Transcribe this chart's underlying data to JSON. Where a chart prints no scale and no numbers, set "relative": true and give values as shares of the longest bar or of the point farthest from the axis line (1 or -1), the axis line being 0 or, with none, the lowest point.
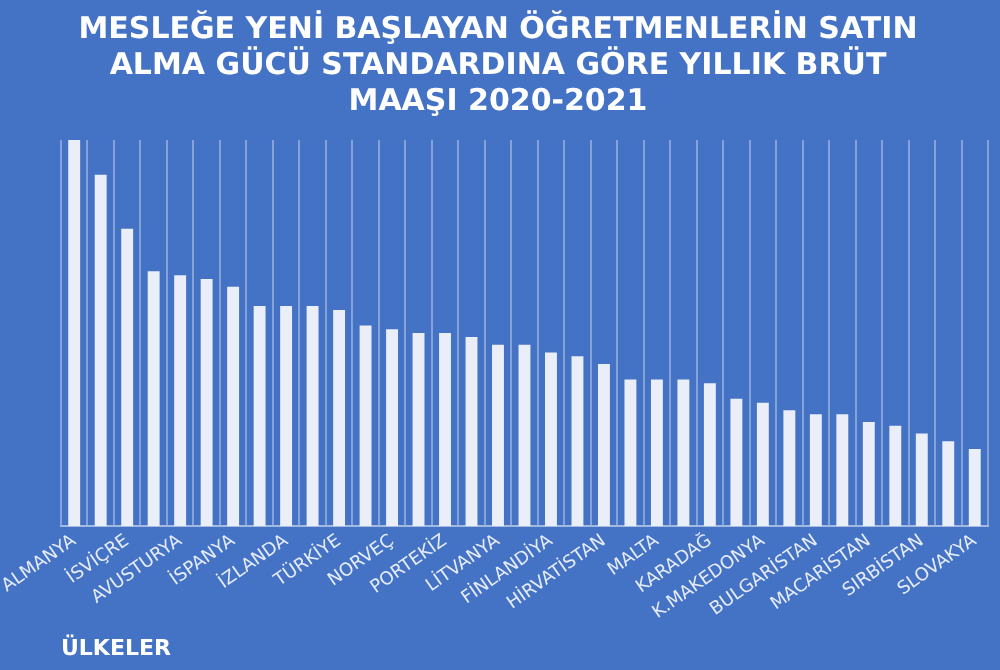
{
  "chart_data": {
    "type": "bar",
    "title": "MESLEĞE YENİ BAŞLAYAN ÖĞRETMENLERİN SATIN ALMA GÜCÜ STANDARDINA GÖRE YILLIK BRÜT MAAŞI 2020-2021",
    "xlabel": "ÜLKELER",
    "relative": true,
    "grid": "x",
    "color": "#e9eef8",
    "categories": [
      "ALMANYA",
      null,
      "İSVİÇRE",
      null,
      "AVUSTURYA",
      null,
      "İSPANYA",
      null,
      "İZLANDA",
      null,
      "TÜRKİYE",
      null,
      "NORVEÇ",
      null,
      "PORTEKİZ",
      null,
      "LİTVANYA",
      null,
      "FİNLANDİYA",
      null,
      "HİRVATİSTAN",
      null,
      "MALTA",
      null,
      "KARADAĞ",
      null,
      "K.MAKEDONYA",
      null,
      "BULGARİSTAN",
      null,
      "MACARİSTAN",
      null,
      "SIRBİSTAN",
      null,
      "SLOVAKYA"
    ],
    "values": [
      1,
      0.91,
      0.77,
      0.66,
      0.65,
      0.64,
      0.62,
      0.57,
      0.57,
      0.57,
      0.56,
      0.52,
      0.51,
      0.5,
      0.5,
      0.49,
      0.47,
      0.47,
      0.45,
      0.44,
      0.42,
      0.38,
      0.38,
      0.38,
      0.37,
      0.33,
      0.32,
      0.3,
      0.29,
      0.29,
      0.27,
      0.26,
      0.24,
      0.22,
      0.2
    ]
  }
}
